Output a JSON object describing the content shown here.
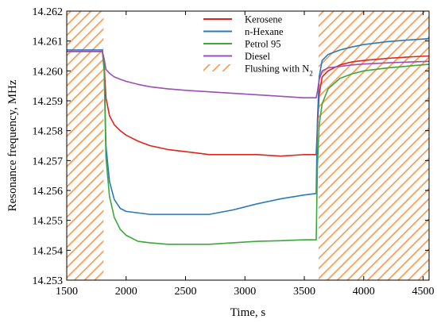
{
  "chart_data": {
    "type": "line",
    "xlabel": "Time, s",
    "ylabel": "Resonance frequency, MHz",
    "xlim": [
      1500,
      4550
    ],
    "ylim": [
      14.253,
      14.262
    ],
    "xticks": [
      1500,
      2000,
      2500,
      3000,
      3500,
      4000,
      4500
    ],
    "yticks": [
      14.253,
      14.254,
      14.255,
      14.256,
      14.257,
      14.258,
      14.259,
      14.26,
      14.261,
      14.262
    ],
    "xtick_labels": [
      "1500",
      "2000",
      "2500",
      "3000",
      "3500",
      "4000",
      "4500"
    ],
    "ytick_labels": [
      "14.253",
      "14.254",
      "14.255",
      "14.256",
      "14.257",
      "14.258",
      "14.259",
      "14.260",
      "14.261",
      "14.262"
    ],
    "legend_position": "top-center",
    "shaded_regions": [
      {
        "name": "Flushing with N2",
        "x": [
          1500,
          1810
        ],
        "color": "#f5a05a"
      },
      {
        "name": "Flushing with N2",
        "x": [
          3620,
          4550
        ],
        "color": "#f5a05a"
      }
    ],
    "legend": [
      {
        "label": "Kerosene",
        "color": "#e0231c",
        "kind": "line"
      },
      {
        "label": "n-Hexane",
        "color": "#2a7ab8",
        "kind": "line"
      },
      {
        "label": "Petrol 95",
        "color": "#3aa93a",
        "kind": "line"
      },
      {
        "label": "Diesel",
        "color": "#9b4fb4",
        "kind": "line"
      },
      {
        "label": "Flushing with N",
        "subscript": "2",
        "color": "#f5a05a",
        "kind": "hatch"
      }
    ],
    "series": [
      {
        "name": "Kerosene",
        "color": "#e0231c",
        "x": [
          1500,
          1800,
          1815,
          1830,
          1860,
          1900,
          1950,
          2000,
          2100,
          2200,
          2350,
          2500,
          2700,
          2900,
          3100,
          3300,
          3500,
          3600,
          3610,
          3625,
          3650,
          3700,
          3800,
          3900,
          4000,
          4200,
          4400,
          4550
        ],
        "values": [
          14.26065,
          14.26065,
          14.2602,
          14.2591,
          14.2585,
          14.2582,
          14.258,
          14.25785,
          14.25765,
          14.2575,
          14.25737,
          14.2573,
          14.2572,
          14.2572,
          14.2572,
          14.25715,
          14.2572,
          14.2572,
          14.2581,
          14.2592,
          14.2598,
          14.26,
          14.2602,
          14.2603,
          14.26035,
          14.26042,
          14.26047,
          14.2605
        ]
      },
      {
        "name": "n-Hexane",
        "color": "#2a7ab8",
        "x": [
          1500,
          1800,
          1815,
          1830,
          1860,
          1900,
          1950,
          2000,
          2100,
          2200,
          2350,
          2500,
          2700,
          2900,
          3100,
          3300,
          3500,
          3600,
          3610,
          3625,
          3650,
          3700,
          3800,
          3900,
          4000,
          4200,
          4400,
          4550
        ],
        "values": [
          14.2607,
          14.2607,
          14.2601,
          14.2575,
          14.2563,
          14.2557,
          14.2554,
          14.2553,
          14.25525,
          14.2552,
          14.2552,
          14.2552,
          14.2552,
          14.25535,
          14.25555,
          14.25572,
          14.25585,
          14.2559,
          14.2583,
          14.2598,
          14.26035,
          14.26055,
          14.2607,
          14.2608,
          14.26088,
          14.26098,
          14.26104,
          14.26108
        ]
      },
      {
        "name": "Petrol 95",
        "color": "#3aa93a",
        "x": [
          1500,
          1800,
          1815,
          1830,
          1860,
          1900,
          1950,
          2000,
          2100,
          2200,
          2350,
          2500,
          2700,
          2900,
          3100,
          3300,
          3500,
          3600,
          3610,
          3625,
          3650,
          3700,
          3800,
          3900,
          4000,
          4200,
          4400,
          4550
        ],
        "values": [
          14.26065,
          14.26065,
          14.26,
          14.2571,
          14.2558,
          14.2551,
          14.2547,
          14.2545,
          14.2543,
          14.25425,
          14.2542,
          14.2542,
          14.2542,
          14.25425,
          14.2543,
          14.25432,
          14.25435,
          14.25435,
          14.2568,
          14.2582,
          14.2589,
          14.2594,
          14.25975,
          14.2599,
          14.26,
          14.2601,
          14.26017,
          14.26022
        ]
      },
      {
        "name": "Diesel",
        "color": "#9b4fb4",
        "x": [
          1500,
          1800,
          1815,
          1830,
          1860,
          1900,
          1950,
          2000,
          2100,
          2200,
          2350,
          2500,
          2700,
          2900,
          3100,
          3300,
          3500,
          3600,
          3610,
          3625,
          3650,
          3700,
          3800,
          3900,
          4000,
          4200,
          4400,
          4550
        ],
        "values": [
          14.26065,
          14.26065,
          14.2604,
          14.26005,
          14.25992,
          14.2598,
          14.25972,
          14.25965,
          14.25955,
          14.25947,
          14.2594,
          14.25935,
          14.2593,
          14.25925,
          14.2592,
          14.25915,
          14.2591,
          14.2591,
          14.2593,
          14.2597,
          14.26,
          14.2601,
          14.26015,
          14.2602,
          14.26023,
          14.26027,
          14.2603,
          14.26032
        ]
      }
    ]
  }
}
